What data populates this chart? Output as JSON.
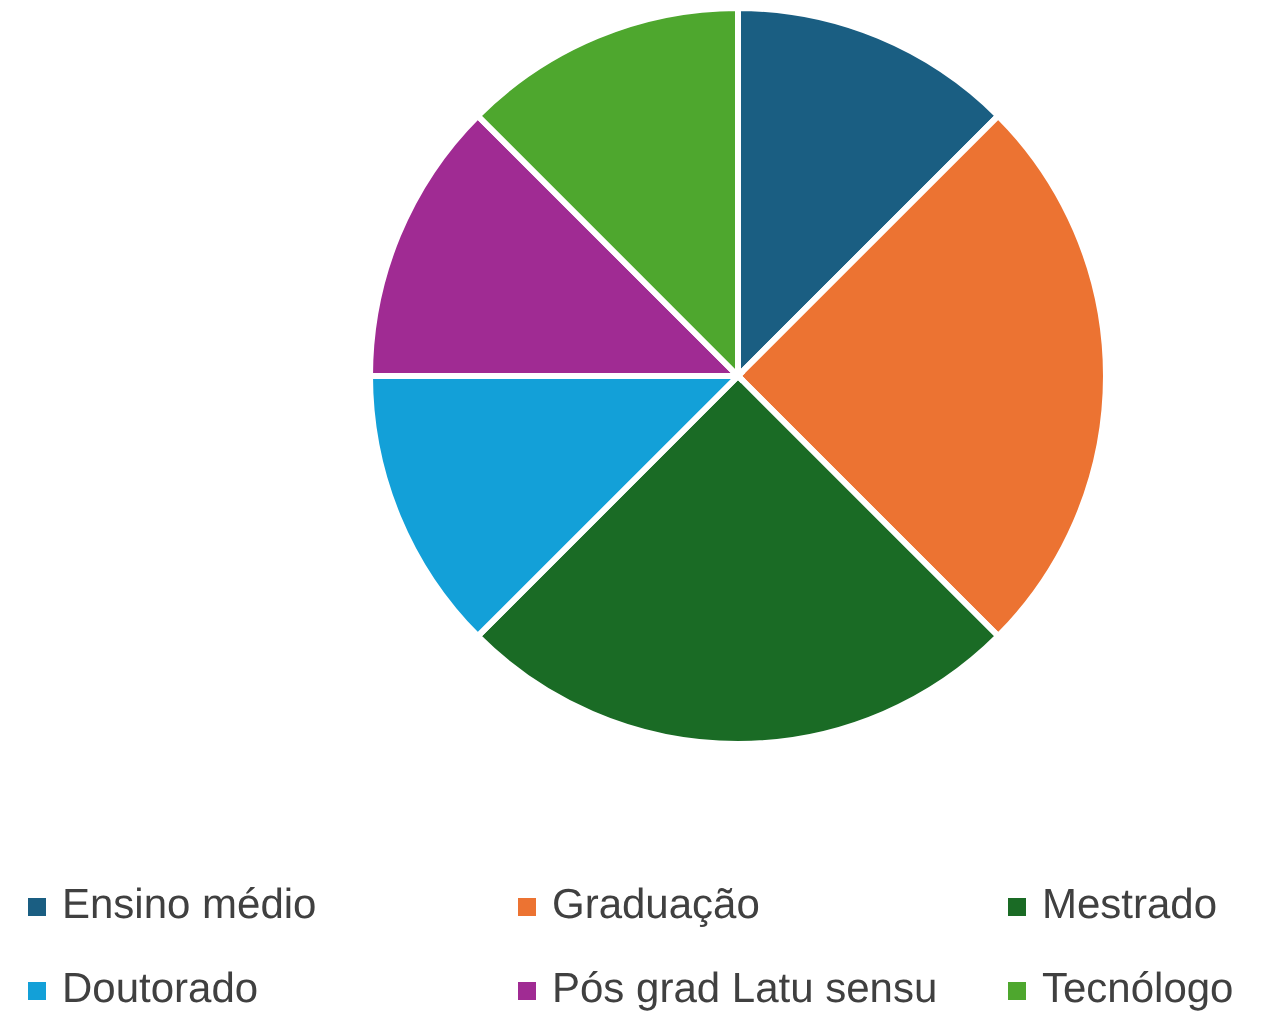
{
  "chart_data": {
    "type": "pie",
    "categories": [
      "Ensino médio",
      "Graduação",
      "Mestrado",
      "Doutorado",
      "Pós grad Latu sensu",
      "Tecnólogo"
    ],
    "values": [
      12.5,
      25,
      25,
      12.5,
      12.5,
      12.5
    ],
    "colors": [
      "#1a5e82",
      "#ec7332",
      "#1a6b25",
      "#13a0d8",
      "#a02b93",
      "#4ea72e"
    ],
    "legend": "bottom"
  }
}
